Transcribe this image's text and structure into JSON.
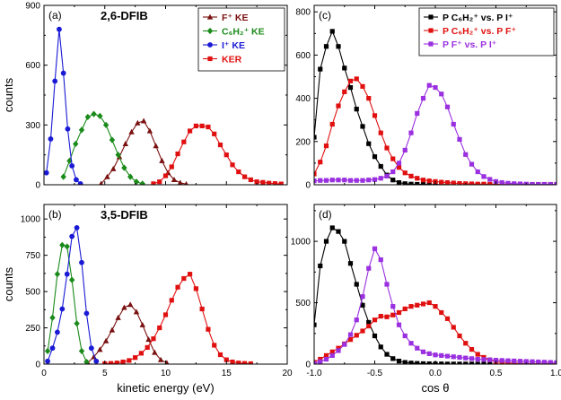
{
  "chart_data": [
    {
      "panel": "(a)",
      "title": "2,6-DFIB",
      "type": "line",
      "xlabel": "",
      "ylabel": "counts",
      "xlim": [
        0,
        20
      ],
      "ylim": [
        0,
        900
      ],
      "xticks": [
        0,
        5,
        10,
        15,
        20
      ],
      "yticks": [
        0,
        300,
        600,
        900
      ],
      "xticklabels": [
        "",
        "",
        "",
        "",
        ""
      ],
      "legend_position": "top-right",
      "series": [
        {
          "name": "F⁺ KE",
          "color": "#7a1010",
          "marker": "triangle",
          "x": [
            4.7,
            5.2,
            5.7,
            6.2,
            6.7,
            7.2,
            7.7,
            8.2,
            8.7,
            9.2,
            9.7,
            10.2,
            10.7,
            11.2,
            11.7
          ],
          "y": [
            5,
            40,
            80,
            140,
            205,
            265,
            310,
            320,
            270,
            195,
            120,
            60,
            25,
            10,
            3
          ]
        },
        {
          "name": "C₆H₂⁺ KE",
          "color": "#1a8a1a",
          "marker": "diamond",
          "x": [
            1.6,
            2.1,
            2.6,
            3.1,
            3.6,
            4.1,
            4.6,
            5.1,
            5.6,
            6.1,
            6.6,
            7.1,
            7.6,
            8.1
          ],
          "y": [
            40,
            120,
            205,
            275,
            340,
            355,
            345,
            300,
            225,
            150,
            85,
            40,
            15,
            5
          ]
        },
        {
          "name": "I⁺ KE",
          "color": "#1a1ad6",
          "marker": "circle",
          "x": [
            0.2,
            0.55,
            0.9,
            1.25,
            1.6,
            1.95,
            2.3,
            2.65,
            3.0
          ],
          "y": [
            60,
            230,
            520,
            780,
            560,
            280,
            95,
            25,
            5
          ]
        },
        {
          "name": "KER",
          "color": "#e01010",
          "marker": "square",
          "x": [
            9.0,
            9.5,
            10.0,
            10.5,
            11.0,
            11.5,
            12.0,
            12.5,
            13.0,
            13.5,
            14.0,
            14.5,
            15.0,
            15.5,
            16.0,
            16.5,
            17.0,
            17.5,
            18.0,
            18.5,
            19.0,
            19.5
          ],
          "y": [
            5,
            15,
            45,
            90,
            155,
            215,
            270,
            295,
            295,
            290,
            255,
            200,
            150,
            100,
            65,
            40,
            25,
            15,
            12,
            8,
            6,
            4
          ]
        }
      ]
    },
    {
      "panel": "(b)",
      "title": "3,5-DFIB",
      "type": "line",
      "xlabel": "kinetic energy (eV)",
      "ylabel": "counts",
      "xlim": [
        0,
        20
      ],
      "ylim": [
        0,
        1100
      ],
      "xticks": [
        0,
        5,
        10,
        15,
        20
      ],
      "yticks": [
        0,
        250,
        500,
        750,
        1000
      ],
      "xticklabels": [
        "0",
        "5",
        "10",
        "15",
        "20"
      ],
      "series": [
        {
          "name": "F⁺ KE",
          "color": "#7a1010",
          "marker": "triangle",
          "x": [
            3.6,
            4.1,
            4.6,
            5.1,
            5.6,
            6.1,
            6.6,
            7.1,
            7.6,
            8.1,
            8.6,
            9.1,
            9.6,
            10.1
          ],
          "y": [
            10,
            50,
            100,
            160,
            235,
            320,
            390,
            410,
            360,
            270,
            170,
            80,
            30,
            8
          ]
        },
        {
          "name": "C₆H₂⁺ KE",
          "color": "#1a8a1a",
          "marker": "diamond",
          "x": [
            0.3,
            0.7,
            1.1,
            1.5,
            1.9,
            2.3,
            2.7,
            3.1,
            3.5
          ],
          "y": [
            90,
            320,
            620,
            820,
            810,
            580,
            280,
            90,
            15
          ]
        },
        {
          "name": "I⁺ KE",
          "color": "#1a1ad6",
          "marker": "circle",
          "x": [
            0.3,
            0.7,
            1.1,
            1.5,
            1.9,
            2.3,
            2.7,
            3.1,
            3.5,
            3.9,
            4.3
          ],
          "y": [
            20,
            110,
            220,
            380,
            620,
            880,
            940,
            700,
            350,
            110,
            20
          ]
        },
        {
          "name": "KER",
          "color": "#e01010",
          "marker": "square",
          "x": [
            5.0,
            5.5,
            6.0,
            6.5,
            7.0,
            7.5,
            8.0,
            8.5,
            9.0,
            9.5,
            10.0,
            10.5,
            11.0,
            11.5,
            12.0,
            12.5,
            13.0,
            13.5,
            14.0,
            14.5,
            15.0,
            15.5,
            16.0,
            16.5,
            17.0
          ],
          "y": [
            3,
            5,
            8,
            15,
            25,
            45,
            75,
            115,
            175,
            250,
            340,
            440,
            530,
            590,
            620,
            520,
            380,
            240,
            130,
            65,
            30,
            15,
            8,
            5,
            3
          ]
        }
      ]
    },
    {
      "panel": "(c)",
      "title": "",
      "type": "line",
      "xlabel": "",
      "ylabel": "",
      "xlim": [
        -1.0,
        1.0
      ],
      "ylim": [
        0,
        830
      ],
      "xticks": [
        -1.0,
        -0.5,
        0.0,
        0.5,
        1.0
      ],
      "yticks": [
        0,
        200,
        400,
        600,
        800
      ],
      "xticklabels": [
        "",
        "",
        "",
        "",
        ""
      ],
      "legend_position": "top-right",
      "series": [
        {
          "name": "P C₆H₂⁺ vs. P I⁺",
          "color": "#000000",
          "marker": "square",
          "x": [
            -1.0,
            -0.95,
            -0.9,
            -0.85,
            -0.8,
            -0.75,
            -0.7,
            -0.65,
            -0.6,
            -0.55,
            -0.5,
            -0.45,
            -0.4,
            -0.35,
            -0.3,
            -0.25,
            -0.2,
            -0.15,
            -0.1,
            -0.05,
            0.0,
            0.05,
            0.1,
            0.15,
            0.2,
            0.25,
            0.3,
            0.35,
            0.4,
            0.45,
            0.5,
            0.55,
            0.6,
            0.65,
            0.7,
            0.75,
            0.8,
            0.85,
            0.9,
            0.95,
            1.0
          ],
          "y": [
            220,
            535,
            640,
            710,
            640,
            540,
            450,
            350,
            270,
            190,
            130,
            85,
            45,
            22,
            10,
            5,
            3,
            2,
            2,
            1,
            1,
            1,
            1,
            0,
            0,
            0,
            0,
            0,
            0,
            0,
            0,
            0,
            0,
            0,
            0,
            0,
            0,
            0,
            0,
            0,
            0
          ]
        },
        {
          "name": "P C₆H₂⁺ vs. P F⁺",
          "color": "#e01010",
          "marker": "square",
          "x": [
            -1.0,
            -0.95,
            -0.9,
            -0.85,
            -0.8,
            -0.75,
            -0.7,
            -0.65,
            -0.6,
            -0.55,
            -0.5,
            -0.45,
            -0.4,
            -0.35,
            -0.3,
            -0.25,
            -0.2,
            -0.15,
            -0.1,
            -0.05,
            0.0,
            0.05,
            0.1,
            0.15,
            0.2,
            0.25,
            0.3,
            0.35,
            0.4,
            0.45,
            0.5,
            0.55,
            0.6,
            0.65,
            0.7,
            0.75,
            0.8,
            0.85,
            0.9,
            0.95,
            1.0
          ],
          "y": [
            50,
            105,
            180,
            280,
            365,
            430,
            480,
            490,
            455,
            400,
            320,
            240,
            170,
            120,
            80,
            55,
            40,
            30,
            22,
            18,
            15,
            12,
            10,
            8,
            6,
            5,
            4,
            3,
            3,
            2,
            2,
            2,
            1,
            1,
            1,
            1,
            1,
            1,
            1,
            1,
            1
          ]
        },
        {
          "name": "P F⁺ vs. P I⁺",
          "color": "#9a30e0",
          "marker": "square",
          "x": [
            -1.0,
            -0.95,
            -0.9,
            -0.85,
            -0.8,
            -0.75,
            -0.7,
            -0.65,
            -0.6,
            -0.55,
            -0.5,
            -0.45,
            -0.4,
            -0.35,
            -0.3,
            -0.25,
            -0.2,
            -0.15,
            -0.1,
            -0.05,
            0.0,
            0.05,
            0.1,
            0.15,
            0.2,
            0.25,
            0.3,
            0.35,
            0.4,
            0.45,
            0.5,
            0.55,
            0.6,
            0.65,
            0.7,
            0.75,
            0.8,
            0.85,
            0.9,
            0.95,
            1.0
          ],
          "y": [
            18,
            20,
            20,
            22,
            22,
            22,
            20,
            20,
            20,
            22,
            24,
            30,
            40,
            60,
            100,
            160,
            240,
            330,
            400,
            460,
            450,
            420,
            360,
            280,
            210,
            140,
            95,
            60,
            38,
            25,
            15,
            10,
            7,
            5,
            4,
            3,
            2,
            2,
            2,
            2,
            2
          ]
        }
      ]
    },
    {
      "panel": "(d)",
      "title": "",
      "type": "line",
      "xlabel": "cos θ",
      "ylabel": "",
      "xlim": [
        -1.0,
        1.0
      ],
      "ylim": [
        0,
        1300
      ],
      "xticks": [
        -1.0,
        -0.5,
        0.0,
        0.5,
        1.0
      ],
      "yticks": [
        0,
        500,
        1000
      ],
      "xticklabels": [
        "-1.0",
        "-0.5",
        "0.0",
        "0.5",
        "1.0"
      ],
      "series": [
        {
          "name": "P C₆H₂⁺ vs. P I⁺",
          "color": "#000000",
          "marker": "square",
          "x": [
            -1.0,
            -0.95,
            -0.9,
            -0.85,
            -0.8,
            -0.75,
            -0.7,
            -0.65,
            -0.6,
            -0.55,
            -0.5,
            -0.45,
            -0.4,
            -0.35,
            -0.3,
            -0.25,
            -0.2,
            -0.15,
            -0.1,
            -0.05,
            0.0,
            0.05,
            0.1,
            0.15,
            0.2,
            0.25,
            0.3,
            0.35,
            0.4,
            0.45,
            0.5,
            0.55,
            0.6,
            0.65,
            0.7,
            0.75,
            0.8,
            0.85,
            0.9,
            0.95,
            1.0
          ],
          "y": [
            320,
            800,
            1000,
            1110,
            1080,
            1000,
            820,
            650,
            480,
            340,
            230,
            140,
            80,
            45,
            25,
            14,
            9,
            6,
            4,
            3,
            2,
            2,
            1,
            1,
            1,
            1,
            1,
            0,
            0,
            0,
            0,
            0,
            0,
            0,
            0,
            0,
            0,
            0,
            0,
            0,
            0
          ]
        },
        {
          "name": "P C₆H₂⁺ vs. P F⁺",
          "color": "#e01010",
          "marker": "square",
          "x": [
            -1.0,
            -0.95,
            -0.9,
            -0.85,
            -0.8,
            -0.75,
            -0.7,
            -0.65,
            -0.6,
            -0.55,
            -0.5,
            -0.45,
            -0.4,
            -0.35,
            -0.3,
            -0.25,
            -0.2,
            -0.15,
            -0.1,
            -0.05,
            0.0,
            0.05,
            0.1,
            0.15,
            0.2,
            0.25,
            0.3,
            0.35,
            0.4,
            0.45,
            0.5,
            0.55,
            0.6,
            0.65,
            0.7,
            0.75,
            0.8,
            0.85,
            0.9,
            0.95,
            1.0
          ],
          "y": [
            15,
            40,
            70,
            100,
            130,
            165,
            200,
            235,
            270,
            310,
            360,
            390,
            385,
            400,
            420,
            450,
            470,
            480,
            490,
            500,
            470,
            420,
            370,
            300,
            230,
            170,
            120,
            80,
            55,
            35,
            22,
            15,
            10,
            7,
            5,
            4,
            3,
            2,
            2,
            2,
            2
          ]
        },
        {
          "name": "P F⁺ vs. P I⁺",
          "color": "#9a30e0",
          "marker": "square",
          "x": [
            -1.0,
            -0.95,
            -0.9,
            -0.85,
            -0.8,
            -0.75,
            -0.7,
            -0.65,
            -0.6,
            -0.55,
            -0.5,
            -0.45,
            -0.4,
            -0.35,
            -0.3,
            -0.25,
            -0.2,
            -0.15,
            -0.1,
            -0.05,
            0.0,
            0.05,
            0.1,
            0.15,
            0.2,
            0.25,
            0.3,
            0.35,
            0.4,
            0.45,
            0.5,
            0.55,
            0.6,
            0.65,
            0.7,
            0.75,
            0.8,
            0.85,
            0.9,
            0.95,
            1.0
          ],
          "y": [
            5,
            20,
            40,
            70,
            110,
            160,
            240,
            360,
            550,
            780,
            940,
            850,
            650,
            470,
            320,
            230,
            170,
            130,
            100,
            85,
            75,
            70,
            65,
            60,
            55,
            50,
            45,
            40,
            38,
            35,
            32,
            30,
            28,
            26,
            24,
            22,
            20,
            18,
            16,
            14,
            12
          ]
        }
      ]
    }
  ]
}
